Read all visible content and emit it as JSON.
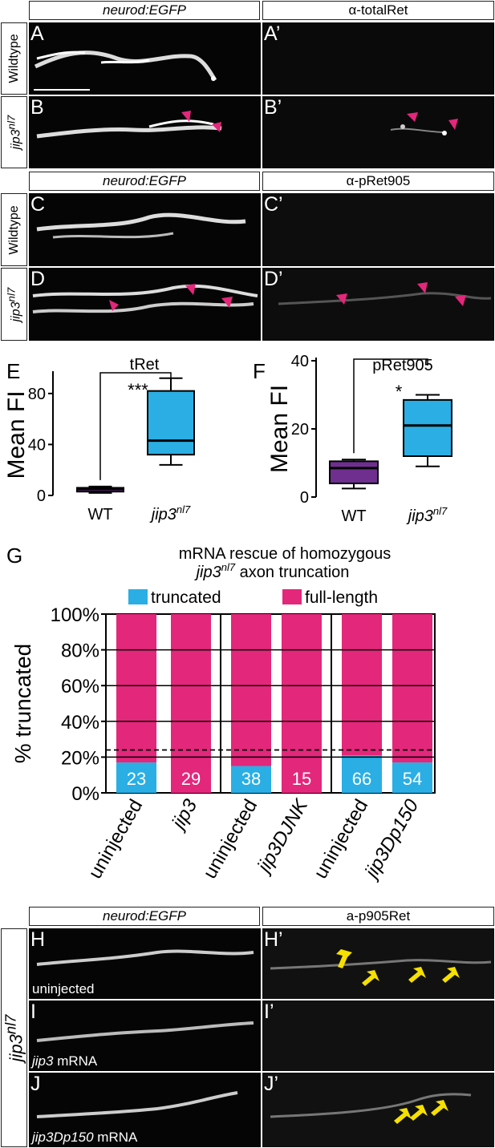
{
  "microscopy": {
    "top_headers": {
      "left": "neurod:EGFP",
      "right": "α-totalRet"
    },
    "mid_headers": {
      "left": "neurod:EGFP",
      "right": "α-pRet905"
    },
    "bottom_headers": {
      "left": "neurod:EGFP",
      "right": "a-p905Ret"
    },
    "panel_labels": {
      "A": "A",
      "A2": "A’",
      "B": "B",
      "B2": "B’",
      "C": "C",
      "C2": "C’",
      "D": "D",
      "D2": "D’",
      "H": "H",
      "H2": "H’",
      "I": "I",
      "I2": "I’",
      "J": "J",
      "J2": "J’"
    },
    "row_labels": {
      "wildtype": "Wildtype",
      "jip3_base": "jip3",
      "jip3_sup": "nl7"
    },
    "captions": {
      "H": "uninjected",
      "I_gene": "jip3",
      "I_rest": " mRNA",
      "J_gene": "jip3Dp150",
      "J_rest": " mRNA"
    }
  },
  "chart_data": [
    {
      "id": "E",
      "type": "box",
      "panel_label": "E",
      "title": "tRet",
      "ylabel": "Mean FI",
      "ylim": [
        0,
        95
      ],
      "yticks": [
        0,
        40,
        80
      ],
      "categories": [
        "WT",
        "jip3nl7"
      ],
      "xtick_labels": [
        {
          "base": "WT",
          "sup": ""
        },
        {
          "base": "jip3",
          "sup": "nl7"
        }
      ],
      "boxes": [
        {
          "name": "WT",
          "min": 2,
          "q1": 3,
          "median": 5,
          "q3": 6,
          "max": 7,
          "color": "#6e2f8f"
        },
        {
          "name": "jip3nl7",
          "min": 24,
          "q1": 32,
          "median": 43,
          "q3": 82,
          "max": 92,
          "color": "#2aaee4"
        }
      ],
      "significance": "***"
    },
    {
      "id": "F",
      "type": "box",
      "panel_label": "F",
      "title": "pRet905",
      "ylabel": "Mean FI",
      "ylim": [
        0,
        40
      ],
      "yticks": [
        0,
        20,
        40
      ],
      "categories": [
        "WT",
        "jip3nl7"
      ],
      "xtick_labels": [
        {
          "base": "WT",
          "sup": ""
        },
        {
          "base": "jip3",
          "sup": "nl7"
        }
      ],
      "boxes": [
        {
          "name": "WT",
          "min": 2.5,
          "q1": 4,
          "median": 8.5,
          "q3": 10.5,
          "max": 11,
          "color": "#6e2f8f"
        },
        {
          "name": "jip3nl7",
          "min": 9,
          "q1": 12,
          "median": 21,
          "q3": 28.5,
          "max": 30,
          "color": "#2aaee4"
        }
      ],
      "significance": "*"
    },
    {
      "id": "G",
      "type": "bar",
      "stacked": true,
      "panel_label": "G",
      "title_line1": "mRNA rescue of homozygous",
      "title_line2": {
        "base": "jip3",
        "sup": "nl7",
        "rest": " axon truncation"
      },
      "ylabel": "% truncated",
      "ylim": [
        0,
        100
      ],
      "yticks": [
        "0%",
        "20%",
        "40%",
        "60%",
        "80%",
        "100%"
      ],
      "categories": [
        "uninjected",
        "jip3",
        "uninjected",
        "jip3DJNK",
        "uninjected",
        "jip3Dp150"
      ],
      "category_italic": [
        false,
        true,
        false,
        true,
        false,
        true
      ],
      "series": [
        {
          "name": "truncated",
          "color": "#2aaee4",
          "values": [
            17,
            0,
            15,
            0,
            21,
            17
          ]
        },
        {
          "name": "full-length",
          "color": "#e3277b",
          "values": [
            83,
            100,
            85,
            100,
            79,
            83
          ]
        }
      ],
      "n_labels": [
        "23",
        "29",
        "38",
        "15",
        "66",
        "54"
      ],
      "reference_line": 24
    }
  ]
}
